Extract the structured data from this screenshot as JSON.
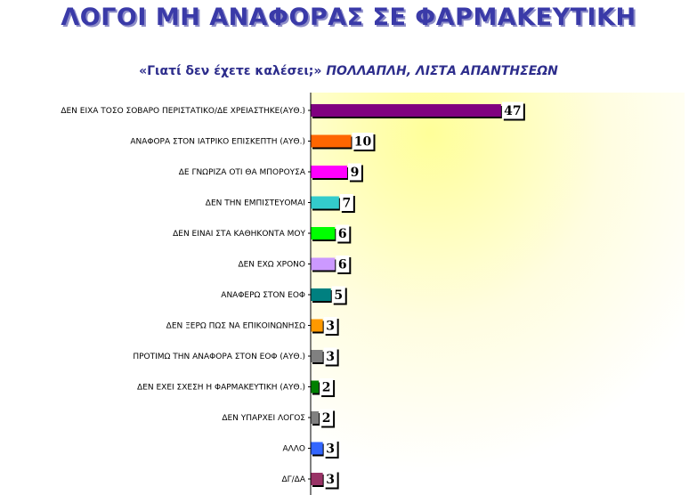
{
  "title": "ΛΟΓΟΙ ΜΗ ΑΝΑΦΟΡΑΣ ΣΕ ΦΑΡΜΑΚΕΥΤΙΚΗ",
  "subtitle_question": "«Γιατί δεν έχετε καλέσει;»",
  "subtitle_note": "ΠΟΛΛΑΠΛΗ, ΛΙΣΤΑ ΑΠΑΝΤΗΣΕΩΝ",
  "chart_data": {
    "type": "bar",
    "orientation": "horizontal",
    "title": "ΛΟΓΟΙ ΜΗ ΑΝΑΦΟΡΑΣ ΣΕ ΦΑΡΜΑΚΕΥΤΙΚΗ",
    "categories": [
      "ΔΕΝ ΕΙΧΑ ΤΟΣΟ ΣΟΒΑΡΟ ΠΕΡΙΣΤΑΤΙΚΟ/ΔΕ ΧΡΕΙΑΣΤΗΚΕ(ΑΥΘ.)",
      "ΑΝΑΦΟΡΑ ΣΤΟΝ ΙΑΤΡΙΚΟ ΕΠΙΣΚΕΠΤΗ (ΑΥΘ.)",
      "ΔΕ ΓΝΩΡΙΖΑ ΟΤΙ ΘΑ ΜΠΟΡΟΥΣΑ",
      "ΔΕΝ ΤΗΝ ΕΜΠΙΣΤΕΥΟΜΑΙ",
      "ΔΕΝ ΕΙΝΑΙ ΣΤΑ ΚΑΘΗΚΟΝΤΑ ΜΟΥ",
      "ΔΕΝ ΕΧΩ ΧΡΟΝΟ",
      "ΑΝΑΦΕΡΩ ΣΤΟΝ ΕΟΦ",
      "ΔΕΝ ΞΕΡΩ ΠΩΣ ΝΑ ΕΠΙΚΟΙΝΩΝΗΣΩ",
      "ΠΡΟΤΙΜΩ ΤΗΝ ΑΝΑΦΟΡΑ ΣΤΟΝ ΕΟΦ (ΑΥΘ.)",
      "ΔΕΝ ΕΧΕΙ ΣΧΕΣΗ Η ΦΑΡΜΑΚΕΥΤΙΚΗ (ΑΥΘ.)",
      "ΔΕΝ ΥΠΑΡΧΕΙ ΛΟΓΟΣ",
      "ΑΛΛΟ",
      "ΔΓ/ΔΑ"
    ],
    "values": [
      47,
      10,
      9,
      7,
      6,
      6,
      5,
      3,
      3,
      2,
      2,
      3,
      3
    ],
    "colors": [
      "#800080",
      "#ff6600",
      "#ff00ff",
      "#33cccc",
      "#00ff00",
      "#cc99ff",
      "#008080",
      "#ff9900",
      "#808080",
      "#008000",
      "#808080",
      "#3366ff",
      "#993366"
    ],
    "xlim": [
      0,
      50
    ],
    "grid": false,
    "legend": "none",
    "background_gradient": [
      "#ffff99",
      "#ffffff"
    ]
  }
}
